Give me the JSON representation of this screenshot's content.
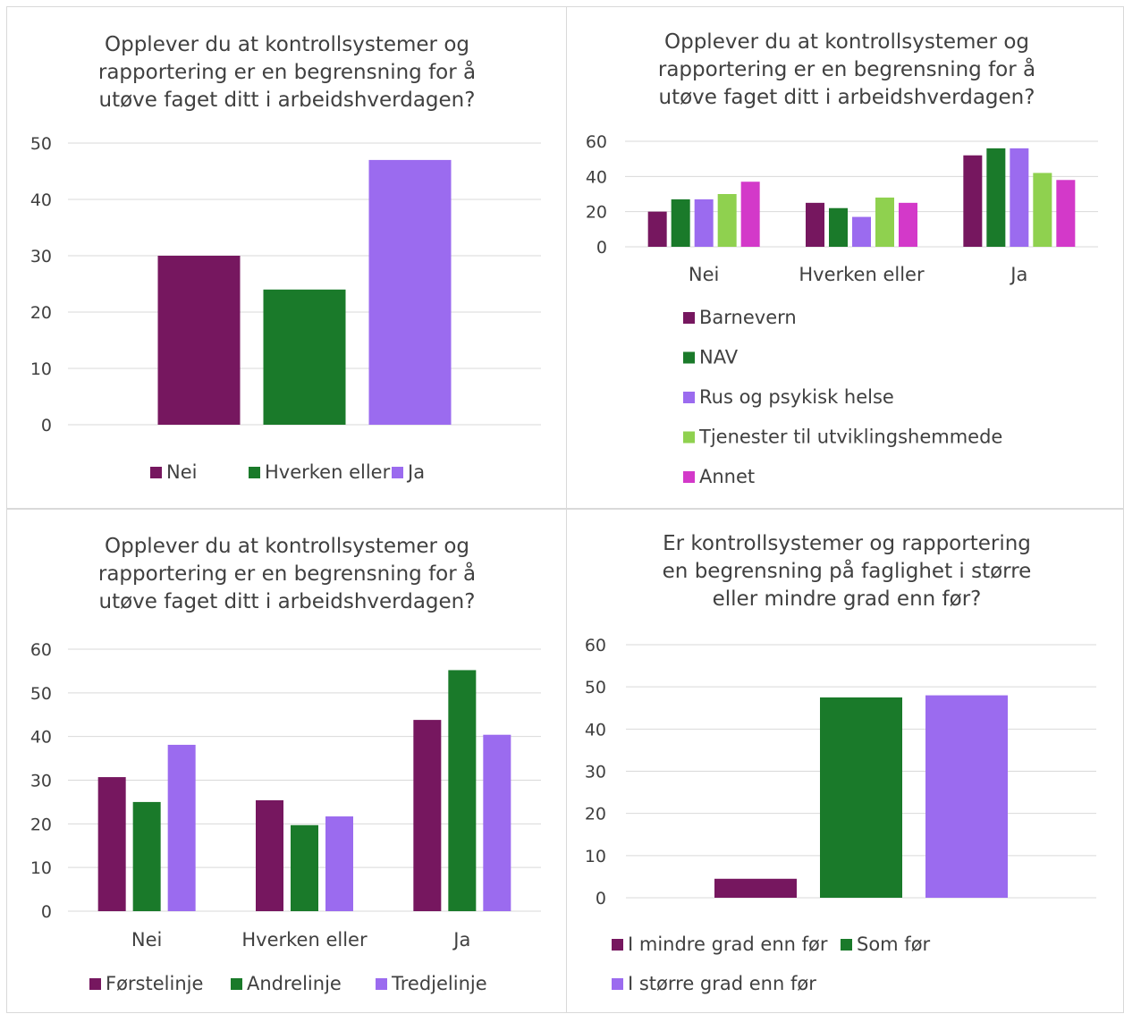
{
  "colors": {
    "purple": "#76175f",
    "green": "#1a7a2a",
    "lavender": "#9b6bef",
    "light_green": "#8fd14f",
    "magenta": "#d339c9",
    "grid": "#d9d9d9",
    "text": "#404040"
  },
  "chart_data": [
    {
      "type": "bar",
      "title": [
        "Opplever du at kontrollsystemer og",
        "rapportering er en begrensning for å",
        "utøve faget ditt i arbeidshverdagen?"
      ],
      "categories": [
        ""
      ],
      "series": [
        {
          "name": "Nei",
          "values": [
            30
          ]
        },
        {
          "name": "Hverken eller",
          "values": [
            24
          ]
        },
        {
          "name": "Ja",
          "values": [
            47
          ]
        }
      ],
      "ylim": [
        0,
        50
      ],
      "yticks": [
        0,
        10,
        20,
        30,
        40,
        50
      ],
      "grid": true,
      "legend": "bottom"
    },
    {
      "type": "bar",
      "title": [
        "Opplever du at kontrollsystemer og",
        "rapportering er en begrensning for å",
        "utøve faget ditt i arbeidshverdagen?"
      ],
      "categories": [
        "Nei",
        "Hverken eller",
        "Ja"
      ],
      "series": [
        {
          "name": "Barnevern",
          "values": [
            20,
            25,
            52
          ]
        },
        {
          "name": "NAV",
          "values": [
            27,
            22,
            56
          ]
        },
        {
          "name": "Rus og psykisk helse",
          "values": [
            27,
            17,
            56
          ]
        },
        {
          "name": "Tjenester til utviklingshemmede",
          "values": [
            30,
            28,
            42
          ]
        },
        {
          "name": "Annet",
          "values": [
            37,
            25,
            38
          ]
        }
      ],
      "ylim": [
        0,
        60
      ],
      "yticks": [
        0,
        20,
        40,
        60
      ],
      "grid": true,
      "legend": "bottom"
    },
    {
      "type": "bar",
      "title": [
        "Opplever du at kontrollsystemer og",
        "rapportering er en begrensning for å",
        "utøve faget ditt i arbeidshverdagen?"
      ],
      "categories": [
        "Nei",
        "Hverken eller",
        "Ja"
      ],
      "series": [
        {
          "name": "Førstelinje",
          "values": [
            30.7,
            25.4,
            43.8
          ]
        },
        {
          "name": "Andrelinje",
          "values": [
            25,
            19.7,
            55.2
          ]
        },
        {
          "name": "Tredjelinje",
          "values": [
            38.1,
            21.7,
            40.4
          ]
        }
      ],
      "ylim": [
        0,
        60
      ],
      "yticks": [
        0,
        10,
        20,
        30,
        40,
        50,
        60
      ],
      "grid": true,
      "legend": "bottom"
    },
    {
      "type": "bar",
      "title": [
        "Er kontrollsystemer og rapportering",
        "en begrensning på faglighet i større",
        "eller mindre grad enn før?"
      ],
      "categories": [
        ""
      ],
      "series": [
        {
          "name": "I mindre grad enn før",
          "values": [
            4.5
          ]
        },
        {
          "name": "Som før",
          "values": [
            47.5
          ]
        },
        {
          "name": "I større grad enn før",
          "values": [
            48
          ]
        }
      ],
      "ylim": [
        0,
        60
      ],
      "yticks": [
        0,
        10,
        20,
        30,
        40,
        50,
        60
      ],
      "grid": true,
      "legend": "bottom"
    }
  ]
}
